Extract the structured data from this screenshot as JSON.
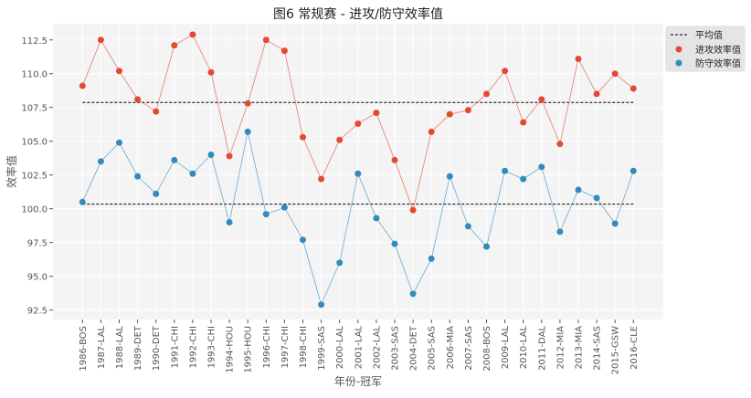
{
  "chart_data": {
    "type": "line",
    "title": "图6 常规赛 - 进攻/防守效率值",
    "xlabel": "年份-冠军",
    "ylabel": "效率值",
    "ylim": [
      91.8,
      113.7
    ],
    "yticks": [
      "92.5",
      "95.0",
      "97.5",
      "100.0",
      "102.5",
      "105.0",
      "107.5",
      "110.0",
      "112.5"
    ],
    "grid": true,
    "legend_position": "upper-right-outside",
    "categories": [
      "1986-BOS",
      "1987-LAL",
      "1988-LAL",
      "1989-DET",
      "1990-DET",
      "1991-CHI",
      "1992-CHI",
      "1993-CHI",
      "1994-HOU",
      "1995-HOU",
      "1996-CHI",
      "1997-CHI",
      "1998-CHI",
      "1999-SAS",
      "2000-LAL",
      "2001-LAL",
      "2002-LAL",
      "2003-SAS",
      "2004-DET",
      "2005-SAS",
      "2006-MIA",
      "2007-SAS",
      "2008-BOS",
      "2009-LAL",
      "2010-LAL",
      "2011-DAL",
      "2012-MIA",
      "2013-MIA",
      "2014-SAS",
      "2015-GSW",
      "2016-CLE"
    ],
    "series": [
      {
        "name": "进攻效率值",
        "color": "#e24a33",
        "values": [
          109.1,
          112.5,
          110.2,
          108.1,
          107.2,
          112.1,
          112.9,
          110.1,
          103.9,
          107.8,
          112.5,
          111.7,
          105.3,
          102.2,
          105.1,
          106.3,
          107.1,
          103.6,
          99.9,
          105.7,
          107.0,
          107.3,
          108.5,
          110.2,
          106.4,
          108.1,
          104.8,
          111.1,
          108.5,
          110.0,
          108.9
        ]
      },
      {
        "name": "防守效率值",
        "color": "#348abd",
        "values": [
          100.5,
          103.5,
          104.9,
          102.4,
          101.1,
          103.6,
          102.6,
          104.0,
          99.0,
          105.7,
          99.6,
          100.1,
          97.7,
          92.9,
          96.0,
          102.6,
          99.3,
          97.4,
          93.7,
          96.3,
          102.4,
          98.7,
          97.2,
          102.8,
          102.2,
          103.1,
          98.3,
          101.4,
          100.8,
          98.9,
          102.8
        ]
      }
    ],
    "mean_lines": {
      "name": "平均值",
      "color": "#000000",
      "values": [
        107.87,
        100.34
      ]
    }
  }
}
